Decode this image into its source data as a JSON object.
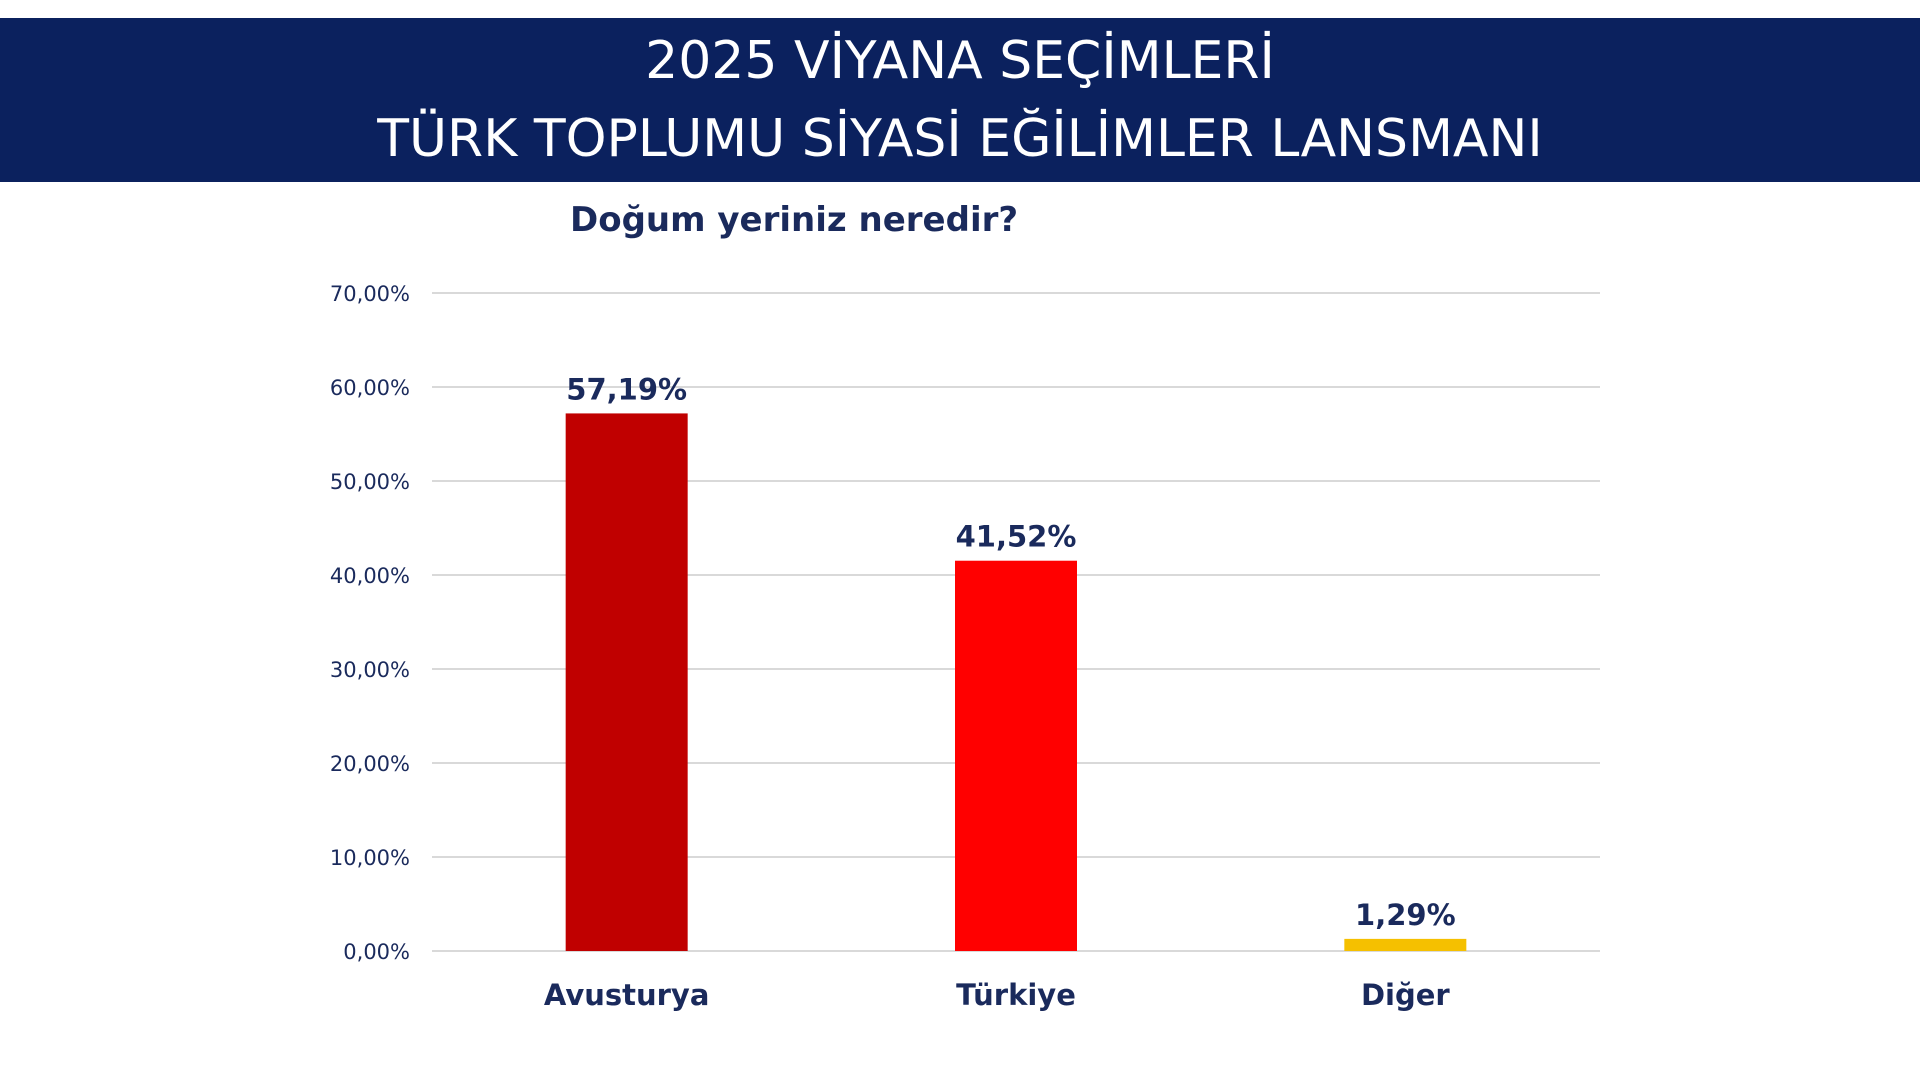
{
  "header": {
    "line1": "2025 VİYANA SEÇİMLERİ",
    "line2": "TÜRK TOPLUMU SİYASİ EĞİLİMLER LANSMANI"
  },
  "colors": {
    "header_bg": "#0b215e",
    "text": "#1a2a5c",
    "grid": "#d9d9d9"
  },
  "chart_data": {
    "type": "bar",
    "title": "Doğum yeriniz neredir?",
    "xlabel": "",
    "ylabel": "",
    "categories": [
      "Avusturya",
      "Türkiye",
      "Diğer"
    ],
    "values": [
      57.19,
      41.52,
      1.29
    ],
    "data_labels": [
      "57,19%",
      "41,52%",
      "1,29%"
    ],
    "bar_colors": [
      "#c00000",
      "#ff0000",
      "#f5c000"
    ],
    "ylim": [
      0,
      70
    ],
    "yticks": [
      0,
      10,
      20,
      30,
      40,
      50,
      60,
      70
    ],
    "ytick_labels": [
      "0,00%",
      "10,00%",
      "20,00%",
      "30,00%",
      "40,00%",
      "50,00%",
      "60,00%",
      "70,00%"
    ],
    "grid": true,
    "legend": "none"
  }
}
